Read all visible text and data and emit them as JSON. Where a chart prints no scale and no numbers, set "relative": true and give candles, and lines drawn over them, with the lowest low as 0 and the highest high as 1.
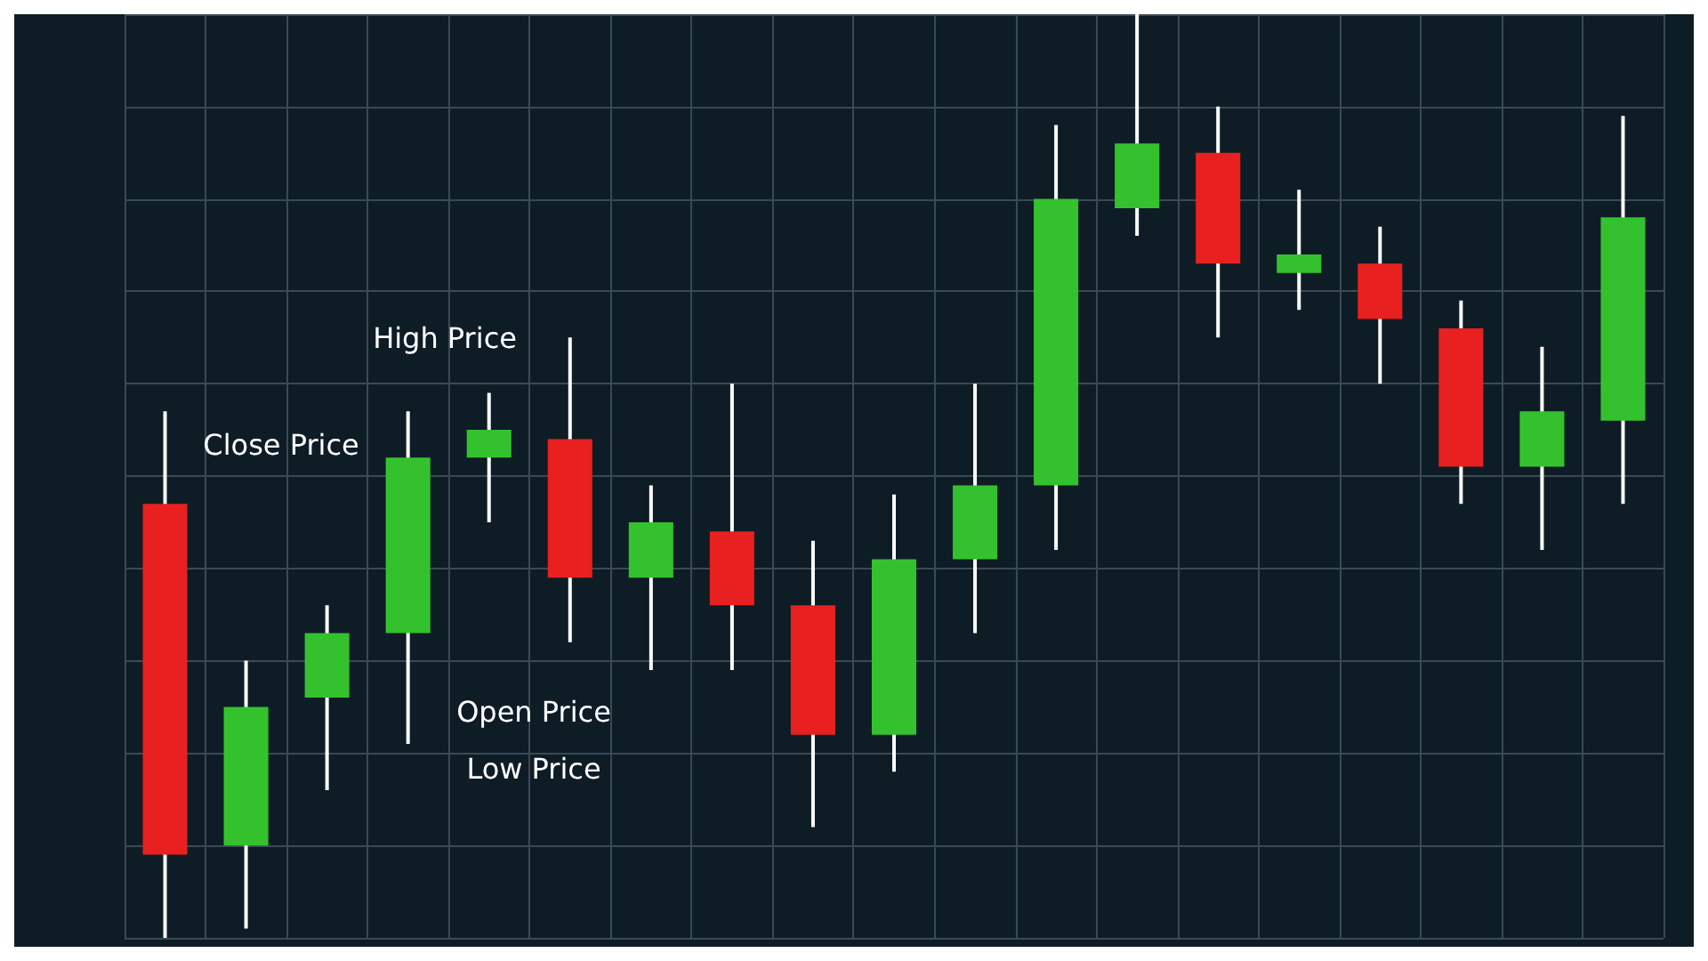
{
  "chart_data": {
    "type": "candlestick",
    "relative": true,
    "grid": true,
    "categories": [
      null,
      null,
      null,
      null,
      null,
      null,
      null,
      null,
      null,
      null,
      null,
      null,
      null,
      null,
      null,
      null,
      null,
      null,
      null
    ],
    "ohlc": [
      [
        0.47,
        0.57,
        0,
        0.09
      ],
      [
        0.1,
        0.3,
        0.01,
        0.25
      ],
      [
        0.26,
        0.36,
        0.16,
        0.33
      ],
      [
        0.33,
        0.57,
        0.21,
        0.52
      ],
      [
        0.52,
        0.59,
        0.45,
        0.55
      ],
      [
        0.54,
        0.65,
        0.32,
        0.39
      ],
      [
        0.39,
        0.49,
        0.29,
        0.45
      ],
      [
        0.44,
        0.6,
        0.29,
        0.36
      ],
      [
        0.36,
        0.43,
        0.12,
        0.22
      ],
      [
        0.22,
        0.48,
        0.18,
        0.41
      ],
      [
        0.41,
        0.6,
        0.33,
        0.49
      ],
      [
        0.49,
        0.88,
        0.42,
        0.8
      ],
      [
        0.79,
        1.0,
        0.76,
        0.86
      ],
      [
        0.85,
        0.9,
        0.65,
        0.73
      ],
      [
        0.72,
        0.81,
        0.68,
        0.74
      ],
      [
        0.73,
        0.77,
        0.6,
        0.67
      ],
      [
        0.66,
        0.69,
        0.47,
        0.51
      ],
      [
        0.51,
        0.64,
        0.42,
        0.57
      ],
      [
        0.56,
        0.89,
        0.47,
        0.78
      ]
    ],
    "colors": [
      "#e8201f",
      "#33c22e",
      "#33c22e",
      "#33c22e",
      "#33c22e",
      "#e8201f",
      "#33c22e",
      "#e8201f",
      "#e8201f",
      "#33c22e",
      "#33c22e",
      "#33c22e",
      "#33c22e",
      "#e8201f",
      "#33c22e",
      "#e8201f",
      "#e8201f",
      "#33c22e",
      "#33c22e"
    ],
    "annotations": [
      "High Price",
      "Close Price",
      "Open Price",
      "Low Price"
    ]
  }
}
